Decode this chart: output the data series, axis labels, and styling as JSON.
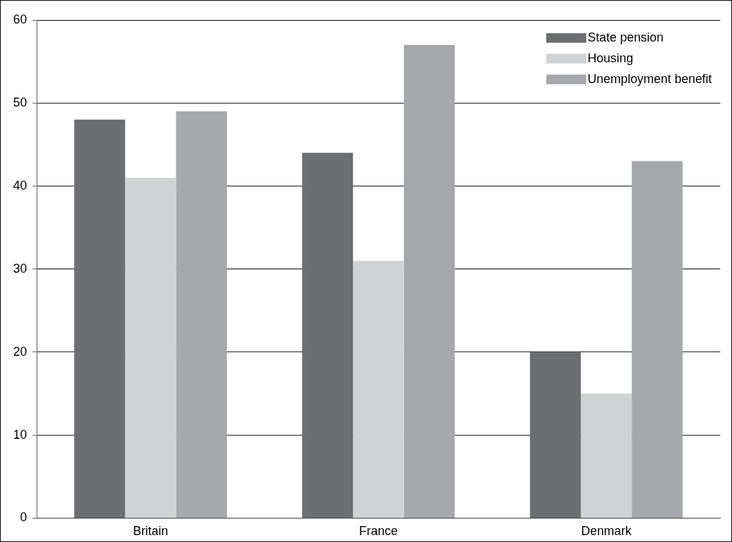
{
  "chart_data": {
    "type": "bar",
    "categories": [
      "Britain",
      "France",
      "Denmark"
    ],
    "series": [
      {
        "name": "State pension",
        "color": "#6d6e71",
        "values": [
          48,
          44,
          20
        ]
      },
      {
        "name": "Housing",
        "color": "#d1d2d4",
        "values": [
          41,
          31,
          15
        ]
      },
      {
        "name": "Unemployment benefit",
        "color": "#a7a8ab",
        "values": [
          49,
          57,
          43
        ]
      }
    ],
    "ylim": [
      0,
      60
    ],
    "yticks": [
      0,
      10,
      20,
      30,
      40,
      50,
      60
    ],
    "grid": "y",
    "legend": "top right"
  }
}
